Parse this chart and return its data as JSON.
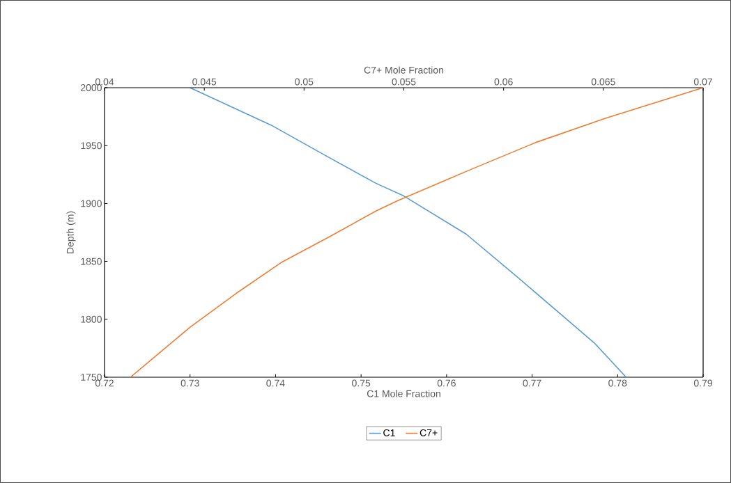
{
  "chart_data": {
    "type": "line",
    "xlabel": "C1 Mole Fraction",
    "x2label": "C7+ Mole Fraction",
    "ylabel": "Depth (m)",
    "xlim": [
      0.72,
      0.79
    ],
    "xticks": [
      0.72,
      0.73,
      0.74,
      0.75,
      0.76,
      0.77,
      0.78,
      0.79
    ],
    "x2lim": [
      0.04,
      0.07
    ],
    "x2ticks": [
      0.04,
      0.045,
      0.05,
      0.055,
      0.06,
      0.065,
      0.07
    ],
    "ylim": [
      1750,
      2000
    ],
    "yticks": [
      1750,
      1800,
      1850,
      1900,
      1950,
      2000
    ],
    "legend": "bottom",
    "marker": "none",
    "line_style": "solid",
    "series": [
      {
        "name": "C1",
        "color": "#5b9bd5",
        "x": [
          0.73,
          0.7395,
          0.7463,
          0.7517,
          0.755,
          0.7623,
          0.7678,
          0.7732,
          0.7773,
          0.781
        ],
        "values": [
          2000,
          1967.6,
          1939.5,
          1917.6,
          1906.5,
          1873.5,
          1839.5,
          1805.4,
          1779.4,
          1750
        ]
      },
      {
        "name": "C7+",
        "color": "#ed7d31",
        "axis": "x2",
        "x": [
          0.0413,
          0.0443,
          0.0466,
          0.0489,
          0.0513,
          0.0536,
          0.0547,
          0.0581,
          0.0616,
          0.0651,
          0.07
        ],
        "values": [
          1750,
          1793.4,
          1822.4,
          1849.5,
          1871.5,
          1893.5,
          1902.5,
          1927.5,
          1952.6,
          1973.6,
          2000
        ]
      }
    ]
  }
}
